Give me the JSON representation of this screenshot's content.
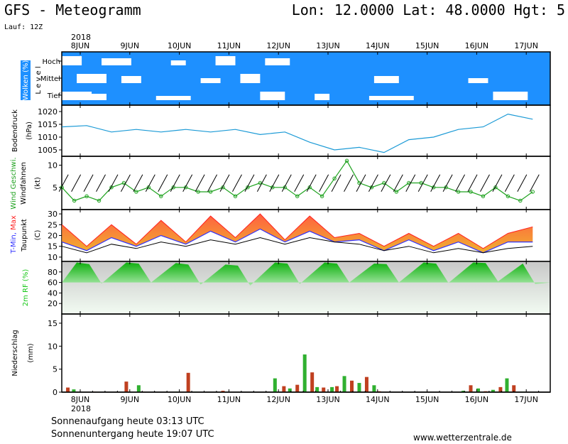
{
  "header": {
    "title": "GFS - Meteogramm",
    "coords": "Lon: 12.0000 Lat: 48.0000 Hgt: 5",
    "run": "Lauf: 12Z"
  },
  "footer": {
    "sunrise": "Sonnenaufgang heute 03:13 UTC",
    "sunset": "Sonnenuntergang heute 19:07 UTC",
    "credit": "www.wetterzentrale.de"
  },
  "colors": {
    "cloud_bg": "#1e90ff",
    "pressure": "#1b9ad6",
    "wind": "#1fa21f",
    "tmin": "#3030ff",
    "tmax": "#ff2020",
    "temp_fill_low": "#f0b030",
    "temp_fill_high": "#ff6040",
    "rh_fill": "#18c818",
    "precip_a": "#c04020",
    "precip_b": "#30b030"
  },
  "chart_data": [
    {
      "type": "heatmap",
      "panel": "clouds",
      "ylabel": "Wolken (%)",
      "axis_title": "L e v e l",
      "levels": [
        "Hoch",
        "Mittel",
        "Tief"
      ],
      "clear_bands": [
        {
          "level": "Hoch",
          "ranges": [
            [
              0,
              0.4
            ],
            [
              0.8,
              1.4
            ],
            [
              2.2,
              2.5
            ],
            [
              3.1,
              3.5
            ],
            [
              4.1,
              4.6
            ]
          ]
        },
        {
          "level": "Mittel",
          "ranges": [
            [
              0.3,
              0.9
            ],
            [
              1.2,
              1.6
            ],
            [
              2.8,
              3.2
            ],
            [
              3.6,
              4.0
            ],
            [
              6.3,
              6.8
            ],
            [
              8.2,
              8.6
            ]
          ]
        },
        {
          "level": "Tief",
          "ranges": [
            [
              0,
              0.6
            ],
            [
              0.5,
              0.9
            ],
            [
              1.9,
              2.6
            ],
            [
              4.0,
              4.5
            ],
            [
              5.1,
              5.4
            ],
            [
              6.2,
              7.1
            ],
            [
              8.7,
              9.4
            ]
          ]
        }
      ]
    },
    {
      "type": "line",
      "panel": "pressure",
      "ylabel": "Bodendruck",
      "unit": "(hPa)",
      "yticks": [
        1005,
        1010,
        1015,
        1020
      ],
      "ylim": [
        1002.5,
        1022.5
      ],
      "x_days": [
        0,
        0.5,
        1,
        1.5,
        2,
        2.5,
        3,
        3.5,
        4,
        4.5,
        5,
        5.5,
        6,
        6.5,
        7,
        7.5,
        8,
        8.5,
        9,
        9.5
      ],
      "values": [
        1014,
        1014.5,
        1012,
        1013,
        1012,
        1013,
        1012,
        1013,
        1011,
        1012,
        1008,
        1005,
        1006,
        1004,
        1009,
        1010,
        1013,
        1014,
        1019,
        1017
      ]
    },
    {
      "type": "line",
      "panel": "wind",
      "ylabel": "Wind Geschwi.",
      "ylabel2": "Windfahnen",
      "unit": "(kt)",
      "yticks": [
        5,
        10
      ],
      "ylim": [
        0,
        12
      ],
      "x_days": [
        0,
        0.25,
        0.5,
        0.75,
        1,
        1.25,
        1.5,
        1.75,
        2,
        2.25,
        2.5,
        2.75,
        3,
        3.25,
        3.5,
        3.75,
        4,
        4.25,
        4.5,
        4.75,
        5,
        5.25,
        5.5,
        5.75,
        6,
        6.25,
        6.5,
        6.75,
        7,
        7.25,
        7.5,
        7.75,
        8,
        8.25,
        8.5,
        8.75,
        9,
        9.25,
        9.5
      ],
      "values": [
        5,
        2,
        3,
        2,
        5,
        6,
        4,
        5,
        3,
        5,
        5,
        4,
        4,
        5,
        3,
        5,
        6,
        5,
        5,
        3,
        5,
        3,
        7,
        11,
        6,
        5,
        6,
        4,
        6,
        6,
        5,
        5,
        4,
        4,
        3,
        5,
        3,
        2,
        4
      ]
    },
    {
      "type": "area",
      "panel": "temperature",
      "ylabel_parts": [
        "T-Min,",
        " Max"
      ],
      "ylabel2": "Taupunkt",
      "unit": "(C)",
      "yticks": [
        10,
        15,
        20,
        25,
        30
      ],
      "ylim": [
        8,
        32
      ],
      "x_days": [
        0,
        0.5,
        1,
        1.5,
        2,
        2.5,
        3,
        3.5,
        4,
        4.5,
        5,
        5.5,
        6,
        6.5,
        7,
        7.5,
        8,
        8.5,
        9,
        9.5
      ],
      "tmax": [
        25,
        15,
        25,
        16,
        27,
        17,
        29,
        19,
        30,
        18,
        29,
        19,
        21,
        15,
        21,
        15,
        21,
        14,
        21,
        24
      ],
      "tmin": [
        17,
        13,
        19,
        15,
        20,
        16,
        22,
        17,
        23,
        17,
        22,
        17,
        18,
        13,
        18,
        13,
        17,
        12,
        17,
        17
      ],
      "dewpoint": [
        15,
        12,
        16,
        14,
        17,
        15,
        18,
        16,
        19,
        16,
        19,
        17,
        16,
        13,
        15,
        12,
        14,
        12,
        14,
        15
      ]
    },
    {
      "type": "area",
      "panel": "humidity",
      "ylabel": "2m RF (%)",
      "yticks": [
        20,
        40,
        60,
        80
      ],
      "ylim": [
        0,
        100
      ],
      "x_days": [
        0,
        0.3,
        0.55,
        0.8,
        1.3,
        1.55,
        1.8,
        2.3,
        2.55,
        2.8,
        3.3,
        3.55,
        3.8,
        4.3,
        4.55,
        4.8,
        5.3,
        5.55,
        5.8,
        6.3,
        6.55,
        6.8,
        7.3,
        7.55,
        7.8,
        8.3,
        8.55,
        8.8,
        9.3,
        9.55
      ],
      "values": [
        60,
        98,
        95,
        58,
        98,
        96,
        60,
        97,
        94,
        56,
        94,
        92,
        54,
        98,
        96,
        57,
        98,
        96,
        60,
        96,
        95,
        60,
        98,
        96,
        59,
        98,
        97,
        62,
        96,
        57
      ]
    },
    {
      "type": "bar",
      "panel": "precip",
      "ylabel": "Niederschlag",
      "unit": "(mm)",
      "yticks": [
        0,
        5,
        10,
        15
      ],
      "ylim": [
        0,
        17
      ],
      "x_days": [
        0.12,
        0.24,
        0.65,
        0.9,
        1.3,
        1.55,
        1.65,
        2.3,
        2.55,
        2.7,
        3.25,
        4.3,
        4.48,
        4.6,
        4.75,
        4.9,
        5.05,
        5.15,
        5.28,
        5.45,
        5.55,
        5.7,
        5.85,
        6.0,
        6.15,
        6.3,
        6.4,
        8.1,
        8.25,
        8.4,
        8.55,
        8.7,
        8.85,
        8.98,
        9.12,
        9.3
      ],
      "values": [
        1.0,
        0.6,
        0.1,
        0.05,
        2.3,
        1.5,
        0.1,
        0.1,
        4.2,
        0.1,
        0.3,
        3.0,
        1.3,
        0.8,
        1.6,
        8.2,
        4.3,
        1.1,
        1.0,
        1.1,
        1.3,
        3.5,
        2.5,
        2.0,
        3.3,
        1.5,
        0.2,
        0.3,
        1.5,
        0.8,
        0.2,
        0.5,
        1.1,
        3.0,
        1.5,
        0.1
      ]
    },
    {
      "type": "axis",
      "year": "2018",
      "day_labels": [
        "8JUN",
        "9JUN",
        "10JUN",
        "11JUN",
        "12JUN",
        "13JUN",
        "14JUN",
        "15JUN",
        "16JUN",
        "17JUN"
      ]
    }
  ]
}
